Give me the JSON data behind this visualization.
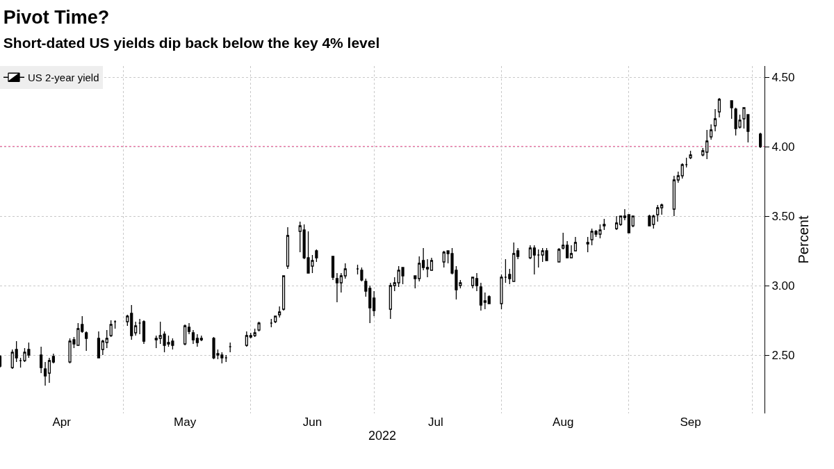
{
  "chart_data": {
    "type": "candlestick",
    "title": "Pivot Time?",
    "subtitle": "Short-dated US yields dip back below the key 4% level",
    "xlabel": "2022",
    "ylabel": "Percent",
    "x": [
      "2022-04-01",
      "2022-04-04",
      "2022-04-05",
      "2022-04-06",
      "2022-04-07",
      "2022-04-08",
      "2022-04-11",
      "2022-04-12",
      "2022-04-13",
      "2022-04-14",
      "2022-04-18",
      "2022-04-19",
      "2022-04-20",
      "2022-04-21",
      "2022-04-22",
      "2022-04-25",
      "2022-04-26",
      "2022-04-27",
      "2022-04-28",
      "2022-04-29",
      "2022-05-02",
      "2022-05-03",
      "2022-05-04",
      "2022-05-05",
      "2022-05-06",
      "2022-05-09",
      "2022-05-10",
      "2022-05-11",
      "2022-05-12",
      "2022-05-13",
      "2022-05-16",
      "2022-05-17",
      "2022-05-18",
      "2022-05-19",
      "2022-05-20",
      "2022-05-23",
      "2022-05-24",
      "2022-05-25",
      "2022-05-26",
      "2022-05-27",
      "2022-05-31",
      "2022-06-01",
      "2022-06-02",
      "2022-06-03",
      "2022-06-06",
      "2022-06-07",
      "2022-06-08",
      "2022-06-09",
      "2022-06-10",
      "2022-06-13",
      "2022-06-14",
      "2022-06-15",
      "2022-06-16",
      "2022-06-17",
      "2022-06-21",
      "2022-06-22",
      "2022-06-23",
      "2022-06-24",
      "2022-06-27",
      "2022-06-28",
      "2022-06-29",
      "2022-06-30",
      "2022-07-01",
      "2022-07-05",
      "2022-07-06",
      "2022-07-07",
      "2022-07-08",
      "2022-07-11",
      "2022-07-12",
      "2022-07-13",
      "2022-07-14",
      "2022-07-15",
      "2022-07-18",
      "2022-07-19",
      "2022-07-20",
      "2022-07-21",
      "2022-07-22",
      "2022-07-25",
      "2022-07-26",
      "2022-07-27",
      "2022-07-28",
      "2022-07-29",
      "2022-08-01",
      "2022-08-02",
      "2022-08-03",
      "2022-08-04",
      "2022-08-05",
      "2022-08-08",
      "2022-08-09",
      "2022-08-10",
      "2022-08-11",
      "2022-08-12",
      "2022-08-15",
      "2022-08-16",
      "2022-08-17",
      "2022-08-18",
      "2022-08-19",
      "2022-08-22",
      "2022-08-23",
      "2022-08-24",
      "2022-08-25",
      "2022-08-26",
      "2022-08-29",
      "2022-08-30",
      "2022-08-31",
      "2022-09-01",
      "2022-09-02",
      "2022-09-06",
      "2022-09-07",
      "2022-09-08",
      "2022-09-09",
      "2022-09-12",
      "2022-09-13",
      "2022-09-14",
      "2022-09-15",
      "2022-09-16",
      "2022-09-19",
      "2022-09-20",
      "2022-09-21",
      "2022-09-22",
      "2022-09-23",
      "2022-09-26",
      "2022-09-27",
      "2022-09-28",
      "2022-09-29",
      "2022-09-30",
      "2022-10-03"
    ],
    "series": [
      {
        "name": "US 2-year yield",
        "color": "#000000",
        "ohlc": [
          [
            2.49,
            2.5,
            2.41,
            2.42
          ],
          [
            2.41,
            2.54,
            2.4,
            2.52
          ],
          [
            2.54,
            2.6,
            2.45,
            2.48
          ],
          [
            2.46,
            2.48,
            2.41,
            2.46
          ],
          [
            2.46,
            2.55,
            2.45,
            2.52
          ],
          [
            2.54,
            2.59,
            2.48,
            2.5
          ],
          [
            2.5,
            2.56,
            2.37,
            2.41
          ],
          [
            2.4,
            2.45,
            2.28,
            2.35
          ],
          [
            2.37,
            2.48,
            2.3,
            2.46
          ],
          [
            2.49,
            2.51,
            2.44,
            2.45
          ],
          [
            2.45,
            2.62,
            2.44,
            2.6
          ],
          [
            2.61,
            2.63,
            2.55,
            2.58
          ],
          [
            2.57,
            2.73,
            2.57,
            2.69
          ],
          [
            2.72,
            2.78,
            2.66,
            2.67
          ],
          [
            2.66,
            2.67,
            2.53,
            2.62
          ],
          [
            2.62,
            2.67,
            2.48,
            2.48
          ],
          [
            2.54,
            2.61,
            2.5,
            2.6
          ],
          [
            2.59,
            2.68,
            2.55,
            2.62
          ],
          [
            2.64,
            2.75,
            2.63,
            2.72
          ],
          [
            2.74,
            2.75,
            2.69,
            2.74
          ],
          [
            2.74,
            2.79,
            2.71,
            2.78
          ],
          [
            2.8,
            2.86,
            2.61,
            2.64
          ],
          [
            2.66,
            2.74,
            2.64,
            2.71
          ],
          [
            2.73,
            2.76,
            2.65,
            2.73
          ],
          [
            2.74,
            2.75,
            2.58,
            2.6
          ],
          [
            2.61,
            2.64,
            2.55,
            2.62
          ],
          [
            2.62,
            2.74,
            2.58,
            2.64
          ],
          [
            2.65,
            2.67,
            2.52,
            2.57
          ],
          [
            2.59,
            2.64,
            2.56,
            2.58
          ],
          [
            2.6,
            2.62,
            2.54,
            2.57
          ],
          [
            2.58,
            2.72,
            2.57,
            2.71
          ],
          [
            2.7,
            2.73,
            2.65,
            2.67
          ],
          [
            2.66,
            2.68,
            2.58,
            2.61
          ],
          [
            2.62,
            2.65,
            2.56,
            2.59
          ],
          [
            2.61,
            2.64,
            2.6,
            2.62
          ],
          [
            2.62,
            2.63,
            2.47,
            2.48
          ],
          [
            2.51,
            2.54,
            2.47,
            2.5
          ],
          [
            2.5,
            2.52,
            2.44,
            2.48
          ],
          [
            2.48,
            2.5,
            2.45,
            2.48
          ],
          [
            2.56,
            2.59,
            2.52,
            2.56
          ],
          [
            2.57,
            2.67,
            2.56,
            2.64
          ],
          [
            2.64,
            2.66,
            2.62,
            2.63
          ],
          [
            2.64,
            2.69,
            2.63,
            2.66
          ],
          [
            2.68,
            2.74,
            2.67,
            2.73
          ],
          [
            2.73,
            2.76,
            2.7,
            2.73
          ],
          [
            2.74,
            2.78,
            2.73,
            2.78
          ],
          [
            2.79,
            2.85,
            2.77,
            2.81
          ],
          [
            2.83,
            3.07,
            2.82,
            3.07
          ],
          [
            3.14,
            3.42,
            3.12,
            3.36
          ],
          [
            3.39,
            3.46,
            3.24,
            3.43
          ],
          [
            3.4,
            3.44,
            3.19,
            3.2
          ],
          [
            3.2,
            3.39,
            3.09,
            3.09
          ],
          [
            3.14,
            3.22,
            3.09,
            3.18
          ],
          [
            3.25,
            3.26,
            3.17,
            3.2
          ],
          [
            3.21,
            3.21,
            3.04,
            3.06
          ],
          [
            3.05,
            3.09,
            2.88,
            3.02
          ],
          [
            3.02,
            3.09,
            2.95,
            3.07
          ],
          [
            3.07,
            3.16,
            3.05,
            3.12
          ],
          [
            3.12,
            3.15,
            3.08,
            3.12
          ],
          [
            3.11,
            3.13,
            3.03,
            3.04
          ],
          [
            3.03,
            3.05,
            2.92,
            2.96
          ],
          [
            2.98,
            3.0,
            2.73,
            2.84
          ],
          [
            2.91,
            2.96,
            2.78,
            2.82
          ],
          [
            2.83,
            3.02,
            2.76,
            3.0
          ],
          [
            3.0,
            3.06,
            2.96,
            3.02
          ],
          [
            3.02,
            3.14,
            2.99,
            3.11
          ],
          [
            3.13,
            3.13,
            3.01,
            3.07
          ],
          [
            3.07,
            3.07,
            2.98,
            3.05
          ],
          [
            3.05,
            3.21,
            3.03,
            3.16
          ],
          [
            3.18,
            3.27,
            3.11,
            3.13
          ],
          [
            3.13,
            3.19,
            3.06,
            3.12
          ],
          [
            3.11,
            3.2,
            3.11,
            3.18
          ],
          [
            3.17,
            3.25,
            3.13,
            3.24
          ],
          [
            3.25,
            3.25,
            3.16,
            3.23
          ],
          [
            3.23,
            3.27,
            3.08,
            3.09
          ],
          [
            3.11,
            3.14,
            2.9,
            2.97
          ],
          [
            3.0,
            3.04,
            2.98,
            3.02
          ],
          [
            3.0,
            3.06,
            2.98,
            3.06
          ],
          [
            3.05,
            3.09,
            2.96,
            3.0
          ],
          [
            2.99,
            3.02,
            2.82,
            2.86
          ],
          [
            2.88,
            2.95,
            2.83,
            2.89
          ],
          [
            2.92,
            2.93,
            2.87,
            2.87
          ],
          [
            2.87,
            3.08,
            2.83,
            3.06
          ],
          [
            3.06,
            3.19,
            3.02,
            3.06
          ],
          [
            3.08,
            3.12,
            3.01,
            3.05
          ],
          [
            3.03,
            3.31,
            3.03,
            3.23
          ],
          [
            3.25,
            3.27,
            3.19,
            3.21
          ],
          [
            3.2,
            3.29,
            3.19,
            3.27
          ],
          [
            3.27,
            3.29,
            3.08,
            3.22
          ],
          [
            3.22,
            3.26,
            3.13,
            3.22
          ],
          [
            3.22,
            3.27,
            3.17,
            3.25
          ],
          [
            3.25,
            3.27,
            3.18,
            3.18
          ],
          [
            3.17,
            3.27,
            3.17,
            3.26
          ],
          [
            3.27,
            3.38,
            3.26,
            3.29
          ],
          [
            3.29,
            3.32,
            3.2,
            3.2
          ],
          [
            3.2,
            3.29,
            3.2,
            3.23
          ],
          [
            3.25,
            3.35,
            3.25,
            3.31
          ],
          [
            3.31,
            3.35,
            3.24,
            3.3
          ],
          [
            3.33,
            3.41,
            3.29,
            3.39
          ],
          [
            3.39,
            3.4,
            3.35,
            3.37
          ],
          [
            3.37,
            3.44,
            3.34,
            3.4
          ],
          [
            3.44,
            3.48,
            3.4,
            3.43
          ],
          [
            3.41,
            3.5,
            3.4,
            3.45
          ],
          [
            3.44,
            3.5,
            3.43,
            3.5
          ],
          [
            3.49,
            3.55,
            3.47,
            3.5
          ],
          [
            3.51,
            3.51,
            3.38,
            3.38
          ],
          [
            3.43,
            3.5,
            3.42,
            3.5
          ],
          [
            3.5,
            3.51,
            3.43,
            3.43
          ],
          [
            3.44,
            3.51,
            3.41,
            3.5
          ],
          [
            3.51,
            3.58,
            3.46,
            3.56
          ],
          [
            3.56,
            3.59,
            3.51,
            3.58
          ],
          [
            3.55,
            3.79,
            3.5,
            3.76
          ],
          [
            3.76,
            3.82,
            3.74,
            3.79
          ],
          [
            3.79,
            3.88,
            3.77,
            3.87
          ],
          [
            3.87,
            3.92,
            3.85,
            3.87
          ],
          [
            3.92,
            3.97,
            3.91,
            3.94
          ],
          [
            3.94,
            3.99,
            3.93,
            3.97
          ],
          [
            3.96,
            4.12,
            3.91,
            4.04
          ],
          [
            4.07,
            4.16,
            4.05,
            4.12
          ],
          [
            4.15,
            4.27,
            4.11,
            4.2
          ],
          [
            4.25,
            4.35,
            4.21,
            4.34
          ],
          [
            4.33,
            4.33,
            4.2,
            4.28
          ],
          [
            4.27,
            4.28,
            4.08,
            4.13
          ],
          [
            4.14,
            4.23,
            4.13,
            4.19
          ],
          [
            4.2,
            4.28,
            4.13,
            4.28
          ],
          [
            4.23,
            4.23,
            4.03,
            4.11
          ],
          [
            4.09,
            4.1,
            3.99,
            4.0
          ]
        ]
      }
    ],
    "xlim": [
      "2022-04-01",
      "2022-10-04"
    ],
    "xticks": [
      {
        "value": "2022-04-16",
        "label": "Apr"
      },
      {
        "value": "2022-05-16",
        "label": "May"
      },
      {
        "value": "2022-06-16",
        "label": "Jun"
      },
      {
        "value": "2022-07-16",
        "label": "Jul"
      },
      {
        "value": "2022-08-16",
        "label": "Aug"
      },
      {
        "value": "2022-09-16",
        "label": "Sep"
      },
      {
        "value": "2022-05-01",
        "label": null
      },
      {
        "value": "2022-06-01",
        "label": null
      },
      {
        "value": "2022-07-01",
        "label": null
      },
      {
        "value": "2022-08-01",
        "label": null
      },
      {
        "value": "2022-09-01",
        "label": null
      },
      {
        "value": "2022-10-01",
        "label": null
      }
    ],
    "ylim": [
      2.08,
      4.58
    ],
    "yticks": [
      {
        "value": 2.5,
        "label": "2.50"
      },
      {
        "value": 3.0,
        "label": "3.00"
      },
      {
        "value": 3.5,
        "label": "3.50"
      },
      {
        "value": 4.0,
        "label": "4.00"
      },
      {
        "value": 4.5,
        "label": "4.50"
      }
    ],
    "ref_lines": [
      {
        "axis": "y",
        "value": 4.0,
        "label": null,
        "color": "#ff3c8c",
        "line_style": "dotted"
      }
    ],
    "grid": true,
    "legend": "top left"
  }
}
